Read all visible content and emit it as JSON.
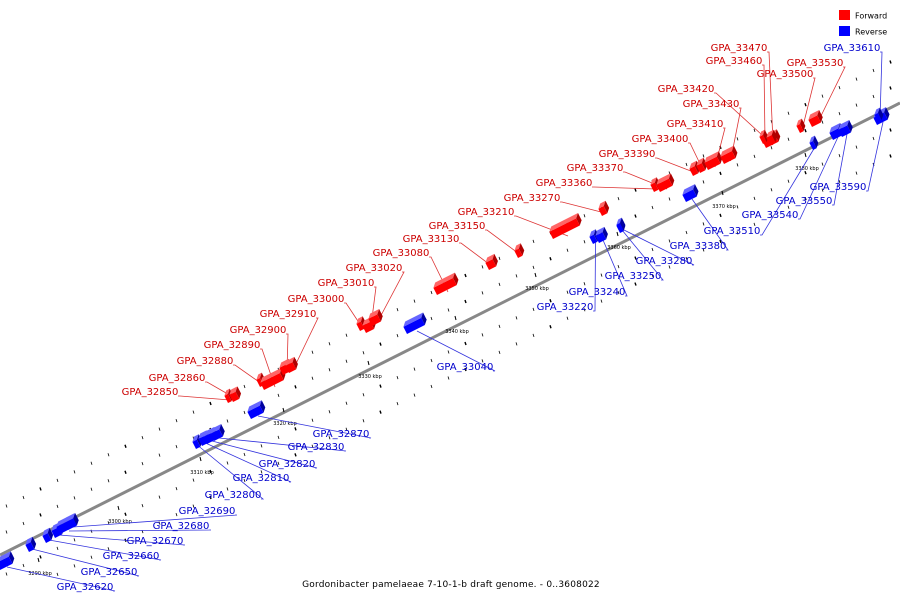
{
  "caption": "Gordonibacter pamelaeae 7-10-1-b draft genome. - 0..3608022",
  "legend": {
    "forward_label": "Forward",
    "reverse_label": "Reverse",
    "forward_color": "#ff0000",
    "reverse_color": "#0000ff"
  },
  "colors": {
    "backbone": "#808080",
    "forward_label": "#cc0000",
    "reverse_label": "#0000cc"
  },
  "scale_ticks": [
    "3290 kbp",
    "3300 kbp",
    "3310 kbp",
    "3320 kbp",
    "3330 kbp",
    "3340 kbp",
    "3350 kbp",
    "3360 kbp",
    "3370 kbp",
    "3380 kbp"
  ],
  "forward_genes": [
    "GPA_32850",
    "GPA_32860",
    "GPA_32880",
    "GPA_32890",
    "GPA_32900",
    "GPA_32910",
    "GPA_33000",
    "GPA_33010",
    "GPA_33020",
    "GPA_33080",
    "GPA_33130",
    "GPA_33150",
    "GPA_33210",
    "GPA_33270",
    "GPA_33360",
    "GPA_33370",
    "GPA_33390",
    "GPA_33400",
    "GPA_33410",
    "GPA_33430",
    "GPA_33420",
    "GPA_33500",
    "GPA_33530",
    "GPA_33460",
    "GPA_33470"
  ],
  "reverse_genes": [
    "GPA_32620",
    "GPA_32650",
    "GPA_32660",
    "GPA_32670",
    "GPA_32680",
    "GPA_32690",
    "GPA_32800",
    "GPA_32810",
    "GPA_32820",
    "GPA_32830",
    "GPA_32870",
    "GPA_33040",
    "GPA_33220",
    "GPA_33240",
    "GPA_33250",
    "GPA_33280",
    "GPA_33380",
    "GPA_33510",
    "GPA_33540",
    "GPA_33550",
    "GPA_33590",
    "GPA_33610"
  ]
}
